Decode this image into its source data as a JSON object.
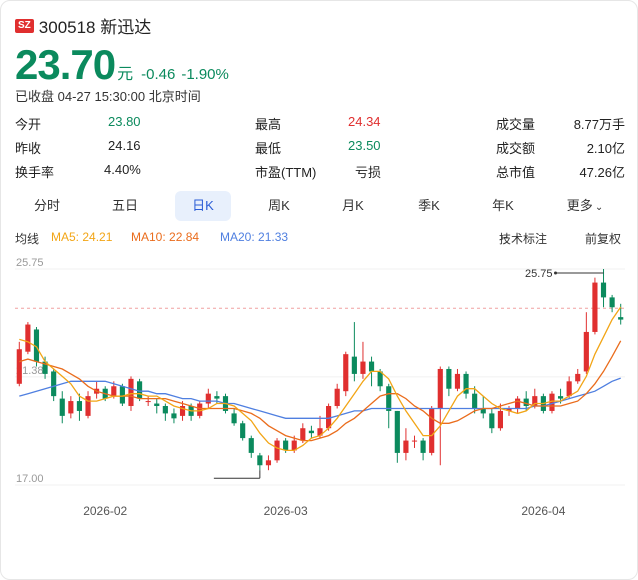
{
  "header": {
    "exchange_badge": "SZ",
    "code_name": "300518 新迅达"
  },
  "quote": {
    "price": "23.70",
    "unit": "元",
    "change": "-0.46",
    "change_pct": "-1.90%",
    "status": "已收盘 04-27 15:30:00 北京时间"
  },
  "stats": [
    [
      {
        "label": "今开",
        "value": "23.80",
        "color": "green"
      },
      {
        "label": "最高",
        "value": "24.34",
        "color": "red"
      },
      {
        "label": "成交量",
        "value": "8.77万手",
        "color": "dark"
      }
    ],
    [
      {
        "label": "昨收",
        "value": "24.16",
        "color": "dark"
      },
      {
        "label": "最低",
        "value": "23.50",
        "color": "green"
      },
      {
        "label": "成交额",
        "value": "2.10亿",
        "color": "dark"
      }
    ],
    [
      {
        "label": "换手率",
        "value": "4.40%",
        "color": "dark"
      },
      {
        "label": "市盈(TTM)",
        "value": "亏损",
        "color": "dark"
      },
      {
        "label": "总市值",
        "value": "47.26亿",
        "color": "dark"
      }
    ]
  ],
  "tabs": [
    "分时",
    "五日",
    "日K",
    "周K",
    "月K",
    "季K",
    "年K",
    "更多"
  ],
  "active_tab": "日K",
  "ma": {
    "label": "均线",
    "ma5": "MA5: 24.21",
    "ma10": "MA10: 22.84",
    "ma20": "MA20: 21.33",
    "tech": "技术标注",
    "adjust": "前复权"
  },
  "colors": {
    "up": "#e02f2f",
    "down": "#0b8a5d",
    "ma5": "#f2a516",
    "ma10": "#ea6c1c",
    "ma20": "#4f7fe0"
  },
  "chart_data": {
    "type": "candlestick",
    "y_ticks": [
      "25.75",
      "21.38",
      "17.00"
    ],
    "x_ticks": [
      "2026-02",
      "2026-03",
      "2026-04"
    ],
    "max_label": "25.75",
    "prev_close": 24.16,
    "ylim": [
      17.0,
      25.75
    ],
    "candles": [
      [
        21.1,
        22.5,
        21.0,
        22.8
      ],
      [
        22.4,
        23.5,
        22.3,
        23.6
      ],
      [
        23.3,
        22.0,
        21.8,
        23.4
      ],
      [
        22.0,
        21.5,
        21.3,
        22.2
      ],
      [
        21.6,
        20.6,
        20.4,
        21.7
      ],
      [
        20.5,
        19.8,
        19.5,
        20.8
      ],
      [
        19.9,
        20.4,
        19.7,
        20.6
      ],
      [
        20.4,
        20.0,
        19.6,
        20.7
      ],
      [
        19.8,
        20.6,
        19.7,
        20.8
      ],
      [
        20.7,
        20.9,
        20.5,
        21.2
      ],
      [
        20.9,
        20.5,
        20.4,
        21.0
      ],
      [
        20.6,
        21.0,
        20.5,
        21.2
      ],
      [
        21.0,
        20.3,
        20.2,
        21.1
      ],
      [
        20.2,
        21.3,
        20.0,
        21.4
      ],
      [
        21.2,
        20.5,
        20.4,
        21.3
      ],
      [
        20.4,
        20.4,
        20.2,
        20.6
      ],
      [
        20.3,
        20.2,
        19.9,
        20.5
      ],
      [
        20.2,
        19.9,
        19.6,
        20.3
      ],
      [
        19.9,
        19.7,
        19.5,
        20.1
      ],
      [
        19.8,
        20.2,
        19.6,
        20.4
      ],
      [
        20.2,
        19.8,
        19.6,
        20.3
      ],
      [
        19.8,
        20.3,
        19.7,
        20.4
      ],
      [
        20.3,
        20.7,
        20.1,
        20.9
      ],
      [
        20.6,
        20.5,
        20.3,
        20.8
      ],
      [
        20.6,
        20.0,
        19.9,
        20.7
      ],
      [
        19.9,
        19.5,
        19.4,
        20.1
      ],
      [
        19.5,
        18.9,
        18.8,
        19.6
      ],
      [
        18.9,
        18.3,
        18.1,
        19.0
      ],
      [
        18.2,
        17.8,
        17.6,
        18.3
      ],
      [
        17.8,
        18.0,
        17.6,
        18.2
      ],
      [
        18.0,
        18.8,
        17.9,
        18.9
      ],
      [
        18.8,
        18.4,
        18.3,
        18.9
      ],
      [
        18.4,
        18.8,
        18.3,
        19.0
      ],
      [
        18.8,
        19.3,
        18.7,
        19.5
      ],
      [
        19.2,
        19.1,
        18.9,
        19.4
      ],
      [
        19.0,
        19.3,
        18.9,
        19.8
      ],
      [
        19.3,
        20.2,
        19.2,
        20.3
      ],
      [
        20.2,
        20.9,
        20.1,
        21.1
      ],
      [
        20.8,
        22.3,
        20.6,
        22.4
      ],
      [
        22.2,
        21.5,
        21.2,
        23.6
      ],
      [
        21.5,
        22.0,
        21.3,
        22.8
      ],
      [
        22.0,
        21.6,
        21.0,
        22.2
      ],
      [
        21.6,
        21.0,
        20.8,
        21.7
      ],
      [
        21.0,
        20.0,
        19.3,
        21.1
      ],
      [
        20.0,
        18.3,
        17.9,
        20.0
      ],
      [
        18.3,
        18.8,
        18.0,
        19.3
      ],
      [
        18.8,
        18.8,
        18.5,
        19.0
      ],
      [
        18.8,
        18.3,
        18.0,
        18.9
      ],
      [
        18.3,
        20.1,
        18.2,
        20.2
      ],
      [
        20.1,
        21.7,
        17.8,
        21.8
      ],
      [
        21.7,
        20.9,
        20.6,
        21.8
      ],
      [
        20.9,
        21.5,
        20.8,
        21.7
      ],
      [
        21.5,
        20.7,
        20.5,
        21.6
      ],
      [
        20.7,
        20.1,
        19.9,
        21.0
      ],
      [
        20.1,
        19.9,
        19.7,
        20.6
      ],
      [
        19.9,
        19.3,
        19.1,
        20.1
      ],
      [
        19.3,
        20.0,
        19.2,
        20.3
      ],
      [
        20.0,
        20.1,
        19.8,
        20.2
      ],
      [
        20.1,
        20.5,
        19.9,
        20.6
      ],
      [
        20.5,
        20.2,
        20.0,
        20.8
      ],
      [
        20.2,
        20.6,
        20.1,
        20.9
      ],
      [
        20.6,
        20.0,
        19.9,
        20.7
      ],
      [
        20.0,
        20.7,
        19.9,
        20.8
      ],
      [
        20.6,
        20.5,
        20.3,
        20.9
      ],
      [
        20.6,
        21.2,
        20.5,
        21.4
      ],
      [
        21.2,
        21.5,
        21.1,
        21.7
      ],
      [
        21.6,
        23.2,
        21.5,
        24.0
      ],
      [
        23.2,
        25.2,
        23.1,
        25.4
      ],
      [
        25.2,
        24.6,
        24.2,
        25.75
      ],
      [
        24.6,
        24.2,
        24.0,
        24.7
      ],
      [
        23.8,
        23.7,
        23.5,
        24.34
      ]
    ],
    "ma5": [
      22.9,
      22.8,
      22.6,
      22.0,
      21.7,
      21.4,
      21.1,
      20.6,
      20.4,
      20.4,
      20.5,
      20.6,
      20.6,
      20.7,
      20.7,
      20.6,
      20.6,
      20.4,
      20.2,
      20.1,
      20.0,
      20.0,
      20.1,
      20.3,
      20.3,
      20.2,
      19.9,
      19.6,
      19.1,
      18.7,
      18.5,
      18.4,
      18.4,
      18.6,
      18.9,
      19.0,
      19.3,
      19.7,
      20.2,
      20.7,
      21.2,
      21.6,
      21.6,
      21.3,
      20.6,
      20.0,
      19.5,
      19.0,
      19.0,
      19.4,
      20.0,
      20.6,
      20.9,
      20.9,
      20.6,
      20.3,
      20.1,
      20.0,
      19.9,
      20.0,
      20.3,
      20.3,
      20.4,
      20.4,
      20.6,
      20.8,
      21.4,
      22.3,
      23.0,
      23.7,
      24.21
    ],
    "ma10": [
      22.0,
      22.1,
      22.0,
      21.9,
      21.8,
      21.7,
      21.5,
      21.3,
      21.0,
      20.8,
      20.7,
      20.6,
      20.6,
      20.6,
      20.5,
      20.5,
      20.5,
      20.5,
      20.4,
      20.3,
      20.2,
      20.1,
      20.1,
      20.1,
      20.1,
      20.1,
      20.0,
      19.9,
      19.7,
      19.4,
      19.2,
      19.0,
      18.9,
      18.8,
      18.8,
      18.9,
      19.0,
      19.2,
      19.5,
      19.7,
      20.0,
      20.3,
      20.6,
      20.7,
      20.7,
      20.5,
      20.2,
      20.0,
      19.7,
      19.5,
      19.5,
      19.6,
      19.8,
      20.0,
      20.1,
      20.1,
      20.2,
      20.3,
      20.4,
      20.3,
      20.2,
      20.2,
      20.2,
      20.2,
      20.3,
      20.4,
      20.7,
      21.1,
      21.6,
      22.2,
      22.84
    ],
    "ma20": [
      20.6,
      20.7,
      20.8,
      20.9,
      21.0,
      21.1,
      21.2,
      21.2,
      21.2,
      21.2,
      21.2,
      21.1,
      21.0,
      20.9,
      20.8,
      20.8,
      20.7,
      20.7,
      20.6,
      20.5,
      20.5,
      20.4,
      20.4,
      20.4,
      20.3,
      20.3,
      20.2,
      20.1,
      20.0,
      19.9,
      19.8,
      19.7,
      19.7,
      19.7,
      19.7,
      19.7,
      19.7,
      19.8,
      19.9,
      20.0,
      20.0,
      20.1,
      20.1,
      20.1,
      20.1,
      20.1,
      20.1,
      20.1,
      20.1,
      20.1,
      20.1,
      20.1,
      20.1,
      20.1,
      20.1,
      20.1,
      20.1,
      20.1,
      20.1,
      20.1,
      20.2,
      20.2,
      20.3,
      20.4,
      20.5,
      20.6,
      20.7,
      20.8,
      21.0,
      21.2,
      21.33
    ]
  }
}
